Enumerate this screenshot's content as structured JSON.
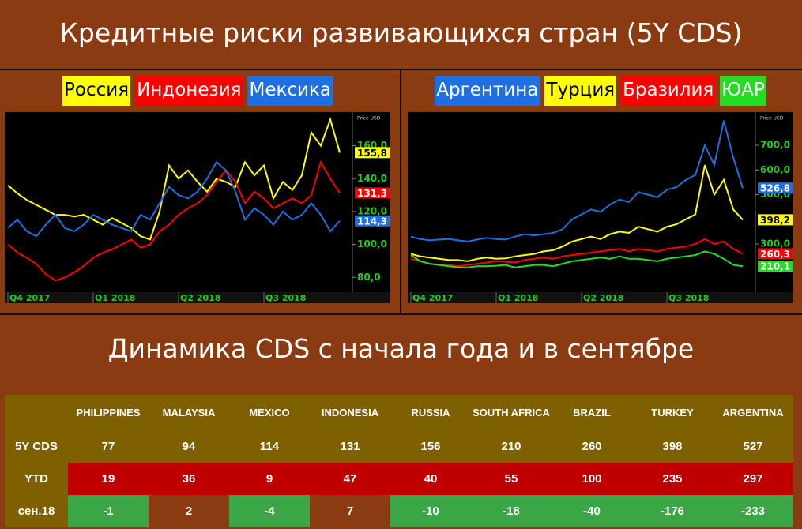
{
  "header": {
    "title": "Кредитные риски развивающихся стран (5Y CDS)"
  },
  "chart_data": [
    {
      "type": "line",
      "y_label": "Price USD",
      "categories": [
        "Q4 2017",
        null,
        null,
        null,
        null,
        null,
        null,
        null,
        null,
        "Q1 2018",
        null,
        null,
        null,
        null,
        null,
        null,
        null,
        null,
        "Q2 2018",
        null,
        null,
        null,
        null,
        null,
        null,
        null,
        null,
        "Q3 2018",
        null,
        null,
        null,
        null,
        null,
        null,
        null,
        null
      ],
      "ylim": [
        71,
        179
      ],
      "yticks": [
        {
          "value": 80,
          "label": "80,0"
        },
        {
          "value": 100,
          "label": "100,0"
        },
        {
          "value": 120,
          "label": "120,0"
        },
        {
          "value": 140,
          "label": "140,0"
        },
        {
          "value": 160,
          "label": "160,0"
        }
      ],
      "series": [
        {
          "name": "Россия",
          "color": "#ffff00",
          "values": [
            136,
            131,
            127,
            124,
            121,
            118,
            118,
            117,
            118,
            115,
            112,
            116,
            113,
            110,
            105,
            103,
            120,
            148,
            140,
            145,
            138,
            132,
            140,
            138,
            135,
            150,
            142,
            148,
            128,
            138,
            133,
            142,
            168,
            160,
            176,
            155.8
          ],
          "last_label": {
            "value": 155.8,
            "label": "155,8"
          }
        },
        {
          "name": "Индонезия",
          "color": "#ff0000",
          "values": [
            100,
            95,
            92,
            88,
            82,
            78,
            80,
            83,
            87,
            92,
            95,
            97,
            100,
            103,
            98,
            100,
            108,
            112,
            118,
            122,
            125,
            130,
            138,
            145,
            138,
            125,
            132,
            128,
            122,
            125,
            128,
            125,
            130,
            150,
            140,
            131.3
          ],
          "last_label": {
            "value": 131.3,
            "label": "131,3"
          }
        },
        {
          "name": "Мексика",
          "color": "#1f6fe0",
          "values": [
            110,
            115,
            108,
            105,
            112,
            118,
            110,
            108,
            112,
            118,
            115,
            112,
            110,
            108,
            118,
            115,
            125,
            135,
            130,
            128,
            132,
            140,
            150,
            145,
            132,
            115,
            122,
            118,
            112,
            120,
            115,
            118,
            125,
            118,
            108,
            114.3
          ],
          "last_label": {
            "value": 114.3,
            "label": "114,3"
          }
        }
      ]
    },
    {
      "type": "line",
      "y_label": "Price USD",
      "categories": [
        "Q4 2017",
        null,
        null,
        null,
        null,
        null,
        null,
        null,
        null,
        "Q1 2018",
        null,
        null,
        null,
        null,
        null,
        null,
        null,
        null,
        "Q2 2018",
        null,
        null,
        null,
        null,
        null,
        null,
        null,
        null,
        "Q3 2018",
        null,
        null,
        null,
        null,
        null,
        null,
        null,
        null
      ],
      "ylim": [
        105,
        825
      ],
      "yticks": [
        {
          "value": 300,
          "label": "300,0"
        },
        {
          "value": 500,
          "label": "500,0"
        },
        {
          "value": 600,
          "label": "600,0"
        },
        {
          "value": 700,
          "label": "700,0"
        }
      ],
      "series": [
        {
          "name": "Аргентина",
          "color": "#1f6fe0",
          "values": [
            330,
            320,
            315,
            318,
            320,
            315,
            310,
            318,
            325,
            320,
            318,
            330,
            340,
            335,
            340,
            345,
            360,
            400,
            420,
            440,
            430,
            460,
            480,
            470,
            510,
            500,
            490,
            520,
            530,
            560,
            580,
            700,
            620,
            800,
            650,
            526.8
          ],
          "last_label": {
            "value": 526.8,
            "label": "526,8"
          }
        },
        {
          "name": "Турция",
          "color": "#ffff00",
          "values": [
            260,
            250,
            245,
            240,
            235,
            235,
            230,
            240,
            245,
            240,
            242,
            250,
            255,
            260,
            270,
            275,
            290,
            310,
            320,
            330,
            320,
            340,
            350,
            345,
            370,
            360,
            350,
            370,
            380,
            400,
            420,
            620,
            500,
            560,
            440,
            398.2
          ],
          "last_label": {
            "value": 398.2,
            "label": "398,2"
          }
        },
        {
          "name": "Бразилия",
          "color": "#ff0000",
          "values": [
            240,
            230,
            220,
            215,
            215,
            210,
            215,
            220,
            225,
            230,
            228,
            225,
            235,
            240,
            245,
            240,
            250,
            255,
            260,
            265,
            270,
            275,
            280,
            270,
            280,
            275,
            270,
            280,
            285,
            290,
            300,
            320,
            300,
            310,
            280,
            260.3
          ],
          "last_label": {
            "value": 260.3,
            "label": "260,3"
          }
        },
        {
          "name": "ЮАР",
          "color": "#22dd22",
          "values": [
            255,
            230,
            220,
            215,
            210,
            205,
            205,
            210,
            210,
            212,
            215,
            205,
            210,
            215,
            215,
            210,
            220,
            230,
            235,
            240,
            245,
            240,
            250,
            240,
            240,
            235,
            230,
            240,
            245,
            250,
            255,
            270,
            260,
            240,
            215,
            210.1
          ],
          "last_label": {
            "value": 210.1,
            "label": "210,1"
          }
        }
      ]
    }
  ],
  "table": {
    "title": "Динамика CDS с начала года и в сентябре",
    "columns": [
      "PHILIPPINES",
      "MALAYSIA",
      "MEXICO",
      "INDONESIA",
      "RUSSIA",
      "SOUTH AFRICA",
      "BRAZIL",
      "TURKEY",
      "ARGENTINA"
    ],
    "rows": [
      {
        "label": "5Y CDS",
        "values": [
          77,
          94,
          114,
          131,
          156,
          210,
          260,
          398,
          527
        ]
      },
      {
        "label": "YTD",
        "values": [
          19,
          36,
          9,
          47,
          40,
          55,
          100,
          235,
          297
        ]
      },
      {
        "label": "сен.18",
        "values": [
          -1,
          2,
          -4,
          7,
          -10,
          -18,
          -40,
          -176,
          -233
        ]
      }
    ]
  }
}
